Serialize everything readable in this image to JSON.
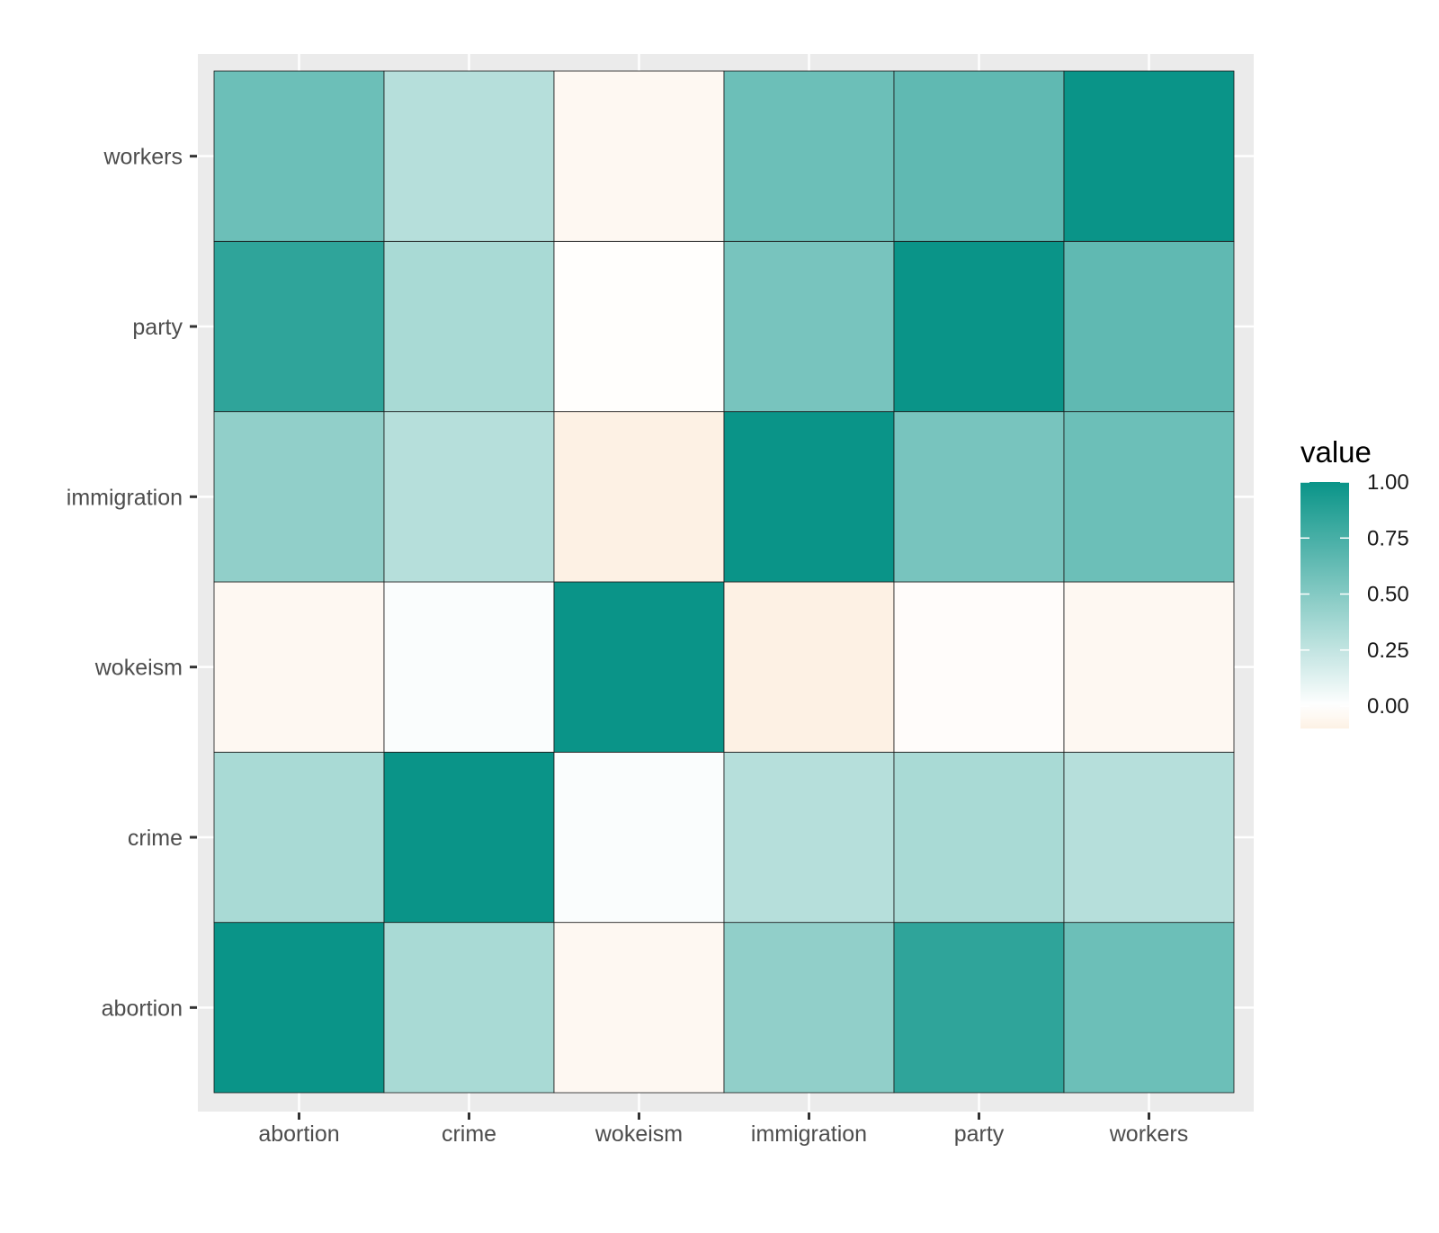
{
  "chart_data": {
    "type": "heatmap",
    "x_categories": [
      "abortion",
      "crime",
      "wokeism",
      "immigration",
      "party",
      "workers"
    ],
    "y_categories": [
      "abortion",
      "crime",
      "wokeism",
      "immigration",
      "party",
      "workers"
    ],
    "values": [
      [
        1.0,
        0.35,
        -0.05,
        0.45,
        0.85,
        0.6
      ],
      [
        0.35,
        1.0,
        0.02,
        0.3,
        0.35,
        0.3
      ],
      [
        -0.05,
        0.02,
        1.0,
        -0.1,
        -0.02,
        -0.05
      ],
      [
        0.45,
        0.3,
        -0.1,
        1.0,
        0.55,
        0.6
      ],
      [
        0.85,
        0.35,
        -0.01,
        0.55,
        1.0,
        0.65
      ],
      [
        0.6,
        0.3,
        -0.05,
        0.6,
        0.65,
        1.0
      ]
    ],
    "legend": {
      "title": "value",
      "position": "right",
      "breaks": [
        1.0,
        0.75,
        0.5,
        0.25,
        0.0
      ],
      "labels": [
        "1.00",
        "0.75",
        "0.50",
        "0.25",
        "0.00"
      ],
      "limits": [
        -0.1,
        1.0
      ]
    },
    "colors": {
      "high": "#0A9488",
      "mid": "#FFFFFF",
      "low": "#FDF1E4",
      "panel_background": "#EBEBEB",
      "grid": "#FFFFFF",
      "tile_border": "#1a1a1a"
    },
    "title": "",
    "xlabel": "",
    "ylabel": "",
    "grid": true
  }
}
